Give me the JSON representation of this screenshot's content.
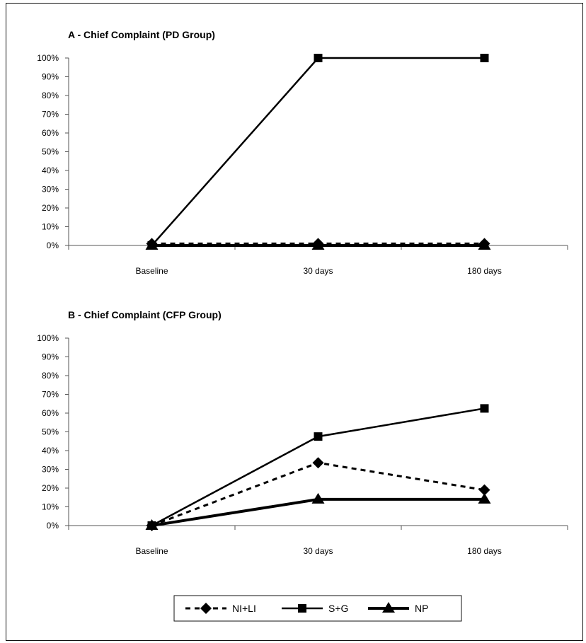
{
  "chart_data": [
    {
      "type": "line",
      "title": "A - Chief Complaint (PD Group)",
      "categories": [
        "Baseline",
        "30 days",
        "180 days"
      ],
      "ylim": [
        0,
        100
      ],
      "yticks": [
        "0%",
        "10%",
        "20%",
        "30%",
        "40%",
        "50%",
        "60%",
        "70%",
        "80%",
        "90%",
        "100%"
      ],
      "series": [
        {
          "name": "NI+LI",
          "values": [
            1,
            1,
            1
          ],
          "style": "dashed",
          "marker": "diamond"
        },
        {
          "name": "S+G",
          "values": [
            0,
            100,
            100
          ],
          "style": "solid",
          "marker": "square"
        },
        {
          "name": "NP",
          "values": [
            0,
            0,
            0
          ],
          "style": "solid-thick",
          "marker": "triangle"
        }
      ]
    },
    {
      "type": "line",
      "title": "B - Chief Complaint (CFP Group)",
      "categories": [
        "Baseline",
        "30 days",
        "180 days"
      ],
      "ylim": [
        0,
        100
      ],
      "yticks": [
        "0%",
        "10%",
        "20%",
        "30%",
        "40%",
        "50%",
        "60%",
        "70%",
        "80%",
        "90%",
        "100%"
      ],
      "series": [
        {
          "name": "NI+LI",
          "values": [
            0,
            33.5,
            19
          ],
          "style": "dashed",
          "marker": "diamond"
        },
        {
          "name": "S+G",
          "values": [
            0,
            47.5,
            62.5
          ],
          "style": "solid",
          "marker": "square"
        },
        {
          "name": "NP",
          "values": [
            0,
            14,
            14
          ],
          "style": "solid-thick",
          "marker": "triangle"
        }
      ]
    }
  ],
  "legend": {
    "placement": "bottom-center",
    "items": [
      {
        "label": "NI+LI",
        "marker": "diamond",
        "style": "dashed"
      },
      {
        "label": "S+G",
        "marker": "square",
        "style": "solid"
      },
      {
        "label": "NP",
        "marker": "triangle",
        "style": "solid-thick"
      }
    ]
  },
  "colors": {
    "line": "#000000",
    "axis": "#555555",
    "background": "#ffffff"
  }
}
